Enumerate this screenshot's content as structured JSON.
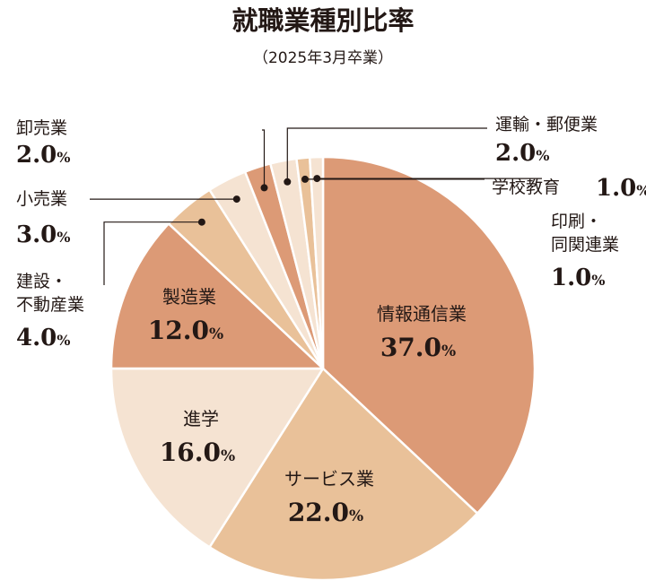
{
  "chart_data": {
    "type": "pie",
    "title": "就職業種別比率",
    "subtitle": "（2025年3月卒業）",
    "unit": "%",
    "slices": [
      {
        "name": "情報通信業",
        "value": 37.0,
        "value_label": "37.0",
        "color": "#dc9a76"
      },
      {
        "name": "サービス業",
        "value": 22.0,
        "value_label": "22.0",
        "color": "#e9c199"
      },
      {
        "name": "進学",
        "value": 16.0,
        "value_label": "16.0",
        "color": "#f5e3d2"
      },
      {
        "name": "製造業",
        "value": 12.0,
        "value_label": "12.0",
        "color": "#dc9a76"
      },
      {
        "name": "建設・不動産業",
        "value": 4.0,
        "value_label": "4.0",
        "color": "#e9c199"
      },
      {
        "name": "小売業",
        "value": 3.0,
        "value_label": "3.0",
        "color": "#f5e3d2"
      },
      {
        "name": "卸売業",
        "value": 2.0,
        "value_label": "2.0",
        "color": "#dc9a76"
      },
      {
        "name": "運輸・郵便業",
        "value": 2.0,
        "value_label": "2.0",
        "color": "#f5e3d2"
      },
      {
        "name": "学校教育",
        "value": 1.0,
        "value_label": "1.0",
        "color": "#e9c199"
      },
      {
        "name": "印刷・同関連業",
        "value": 1.0,
        "value_label": "1.0",
        "color": "#f5e3d2"
      }
    ]
  }
}
